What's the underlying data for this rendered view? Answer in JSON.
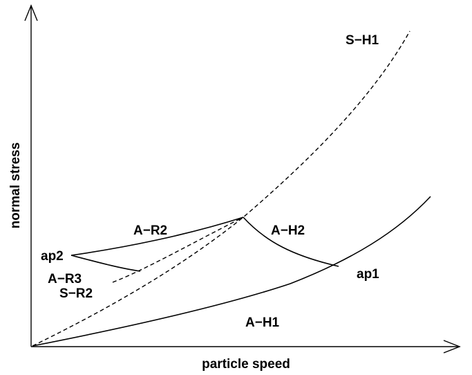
{
  "diagram": {
    "axes": {
      "x_label": "particle speed",
      "y_label": "normal stress"
    },
    "labels": {
      "s_h1": "S−H1",
      "a_r2": "A−R2",
      "a_h2": "A−H2",
      "ap2": "ap2",
      "a_r3": "A−R3",
      "s_r2": "S−R2",
      "ap1": "ap1",
      "a_h1": "A−H1"
    },
    "curves": [
      {
        "id": "S-H1",
        "style": "dashed"
      },
      {
        "id": "A-H1",
        "style": "solid"
      },
      {
        "id": "A-R2",
        "style": "solid"
      },
      {
        "id": "A-H2",
        "style": "solid"
      },
      {
        "id": "A-R3",
        "style": "solid"
      },
      {
        "id": "S-R2",
        "style": "dashed"
      }
    ]
  }
}
